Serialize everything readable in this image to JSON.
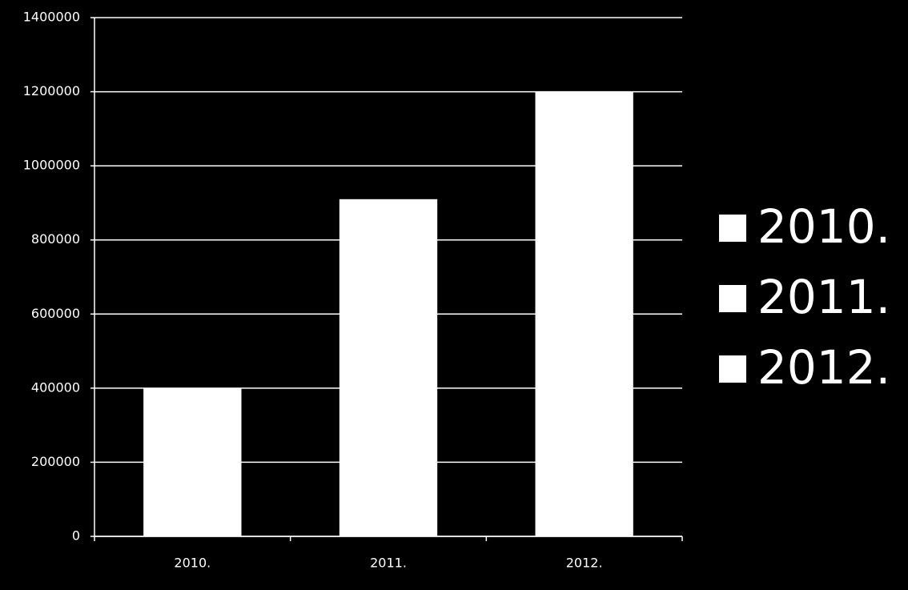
{
  "chart_data": {
    "type": "bar",
    "categories": [
      "2010.",
      "2011.",
      "2012."
    ],
    "values": [
      400000,
      910000,
      1200000
    ],
    "color": "#ffffff",
    "ylim": [
      0,
      1400000
    ],
    "yticks": [
      0,
      200000,
      400000,
      600000,
      800000,
      1000000,
      1200000,
      1400000
    ],
    "grid": true,
    "legend": "right"
  }
}
